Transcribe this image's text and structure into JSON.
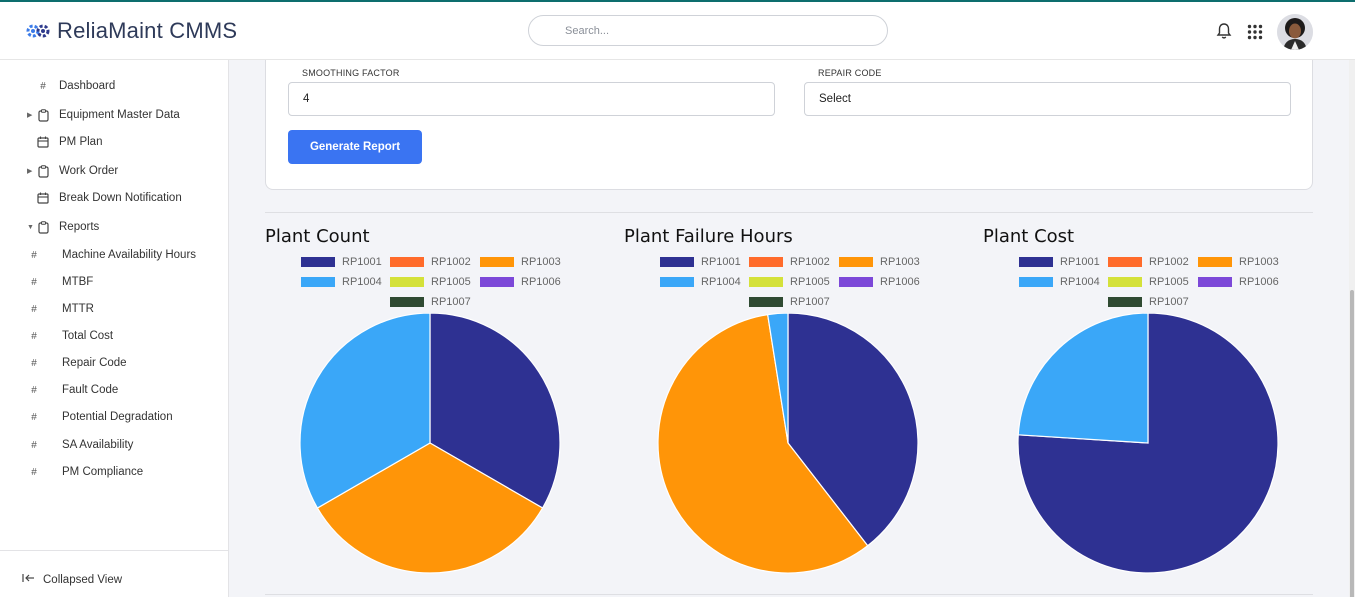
{
  "app": {
    "title": "ReliaMaint CMMS"
  },
  "search": {
    "placeholder": "Search..."
  },
  "sidebar": {
    "items": [
      {
        "label": "Dashboard",
        "icon": "hash-icon",
        "has_caret": false
      },
      {
        "label": "Equipment Master Data",
        "icon": "clipboard-icon",
        "has_caret": true
      },
      {
        "label": "PM Plan",
        "icon": "calendar-icon",
        "has_caret": false
      },
      {
        "label": "Work Order",
        "icon": "clipboard-icon",
        "has_caret": true
      },
      {
        "label": "Break Down Notification",
        "icon": "calendar-icon",
        "has_caret": false
      },
      {
        "label": "Reports",
        "icon": "clipboard-icon",
        "has_caret": true,
        "expanded": true
      }
    ],
    "report_items": [
      {
        "label": "Machine Availability Hours"
      },
      {
        "label": "MTBF"
      },
      {
        "label": "MTTR"
      },
      {
        "label": "Total Cost"
      },
      {
        "label": "Repair Code"
      },
      {
        "label": "Fault Code"
      },
      {
        "label": "Potential Degradation"
      },
      {
        "label": "SA Availability"
      },
      {
        "label": "PM Compliance"
      }
    ],
    "collapse_label": "Collapsed View"
  },
  "form": {
    "smoothing_label": "SMOOTHING FACTOR",
    "smoothing_value": "4",
    "repair_label": "REPAIR CODE",
    "repair_value": "Select",
    "generate_button": "Generate Report"
  },
  "legend": [
    {
      "name": "RP1001",
      "color": "#2e3192"
    },
    {
      "name": "RP1002",
      "color": "#ff6b2b"
    },
    {
      "name": "RP1003",
      "color": "#ff9508"
    },
    {
      "name": "RP1004",
      "color": "#3aa7f8"
    },
    {
      "name": "RP1005",
      "color": "#d4e13a"
    },
    {
      "name": "RP1006",
      "color": "#7c48d8"
    },
    {
      "name": "RP1007",
      "color": "#2f4a32"
    }
  ],
  "chart_data": [
    {
      "type": "pie",
      "title": "Plant Count",
      "categories": [
        "RP1001",
        "RP1002",
        "RP1003",
        "RP1004",
        "RP1005",
        "RP1006",
        "RP1007"
      ],
      "values": [
        1,
        0,
        1,
        1,
        0,
        0,
        0
      ],
      "legend_position": "top"
    },
    {
      "type": "pie",
      "title": "Plant Failure Hours",
      "categories": [
        "RP1001",
        "RP1002",
        "RP1003",
        "RP1004",
        "RP1005",
        "RP1006",
        "RP1007"
      ],
      "values": [
        39.5,
        0,
        58,
        2.5,
        0,
        0,
        0
      ],
      "legend_position": "top"
    },
    {
      "type": "pie",
      "title": "Plant Cost",
      "categories": [
        "RP1001",
        "RP1002",
        "RP1003",
        "RP1004",
        "RP1005",
        "RP1006",
        "RP1007"
      ],
      "values": [
        76,
        0,
        0,
        24,
        0,
        0,
        0
      ],
      "legend_position": "top"
    }
  ]
}
